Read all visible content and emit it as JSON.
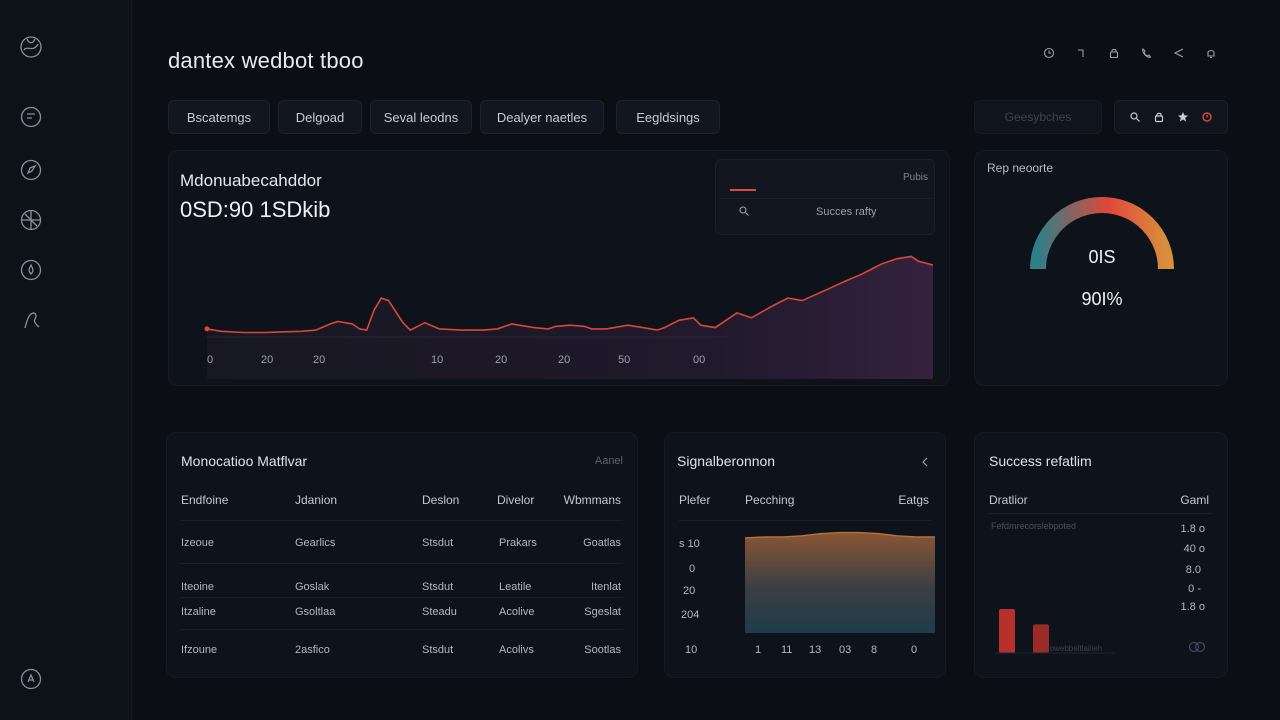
{
  "app": {
    "title": "dantex wedbot tboo"
  },
  "sidebar": {
    "icons": [
      "globe-icon",
      "chat-icon",
      "compass-icon",
      "grid-globe-icon",
      "drop-icon",
      "user-icon",
      "settings-icon"
    ]
  },
  "header": {
    "icons": [
      "clock-icon",
      "pin-icon",
      "lock-icon",
      "phone-icon",
      "share-icon",
      "bell-icon"
    ]
  },
  "tabs": [
    {
      "label": "Bscatemgs"
    },
    {
      "label": "Delgoad"
    },
    {
      "label": "Seval leodns"
    },
    {
      "label": "Dealyer naetles"
    },
    {
      "label": "Eegldsings"
    }
  ],
  "search_box": {
    "label": "Geesybches"
  },
  "toolbar": {
    "icons": [
      "search-icon",
      "lock-icon",
      "star-icon",
      "alert-icon"
    ]
  },
  "main_chart": {
    "title": "Mdonuabecahddor",
    "value": "0SD:90 1SDkib",
    "legend_tag": "Pubis",
    "legend_search": "Succes rafty",
    "chart_data": {
      "type": "area",
      "x_ticks": [
        "0",
        "20",
        "20",
        "10",
        "20",
        "20",
        "50",
        "00"
      ],
      "series": [
        {
          "x": [
            0,
            2,
            5,
            8,
            10,
            13,
            15,
            17,
            18,
            20,
            21,
            22,
            23,
            24,
            25,
            27,
            28,
            30,
            32,
            35,
            38,
            40,
            42,
            43,
            45,
            47,
            48,
            50,
            52,
            53,
            55,
            57,
            58,
            60,
            62,
            63,
            65,
            67,
            68,
            70,
            72,
            73,
            75,
            78,
            80,
            82,
            85,
            88,
            90,
            92,
            93,
            95,
            97,
            98,
            100
          ],
          "y": [
            5,
            3,
            2,
            2,
            2.5,
            3,
            4,
            9,
            11,
            9,
            5,
            4,
            20,
            30,
            28,
            10,
            4,
            10,
            5,
            4,
            4,
            5,
            9,
            8,
            6,
            5,
            7,
            8,
            7,
            5,
            5,
            7,
            8,
            6,
            4,
            6,
            12,
            14,
            8,
            6,
            14,
            18,
            14,
            24,
            30,
            28,
            36,
            44,
            49,
            55,
            58,
            62,
            64,
            60,
            57
          ]
        }
      ]
    }
  },
  "gauge": {
    "title": "Rep neoorte",
    "value": "0IS",
    "percent": "90I%",
    "fraction": 0.9,
    "colors": [
      "#2e7f86",
      "#e1473c",
      "#d98e3b"
    ]
  },
  "monitoring": {
    "title": "Monocatioo Matflvar",
    "action": "Aanel",
    "columns": [
      "Endfoine",
      "Jdanion",
      "Deslon",
      "Divelor",
      "Wbmmans"
    ],
    "rows": [
      [
        "Izeoue",
        "Gearlics",
        "Stsdut",
        "Prakars",
        "Goatlas"
      ],
      [
        "Iteoine",
        "Goslak",
        "Stsdut",
        "Leatile",
        "Itenlat"
      ],
      [
        "Itzaline",
        "Gsoltlaa",
        "Steadu",
        "Acolive",
        "Sgeslat"
      ],
      [
        "Ifzoune",
        "2asfico",
        "Stsdut",
        "Acolivs",
        "Sootlas"
      ]
    ]
  },
  "signal": {
    "title": "Signalberonnon",
    "columns": [
      "Plefer",
      "Pecching",
      "Eatgs"
    ],
    "y_ticks": [
      "s 10",
      "0",
      "20",
      "204",
      "10"
    ],
    "x_ticks": [
      "1",
      "11",
      "13",
      "03",
      "8",
      "0"
    ],
    "chart_data": {
      "type": "area",
      "x": [
        0,
        10,
        20,
        30,
        40,
        50,
        60,
        70,
        80,
        90,
        100
      ],
      "y": [
        88,
        89,
        89,
        90,
        92,
        93,
        93,
        92,
        90,
        89,
        89
      ]
    }
  },
  "success": {
    "title": "Success refatlim",
    "columns": [
      "Dratlior",
      "Gaml"
    ],
    "subtitle": "Fefdmrecorslebpoted",
    "values": [
      "1.8 o",
      "40 o",
      "8.0",
      "0 -",
      "1.8 o"
    ],
    "footer": "rowebbeltlaiiieh",
    "footer_icon": "chat-bubbles-icon",
    "chart_data": {
      "type": "bar",
      "values": [
        40,
        26
      ],
      "colors": [
        "#b8302c",
        "#9b2b28"
      ]
    }
  }
}
